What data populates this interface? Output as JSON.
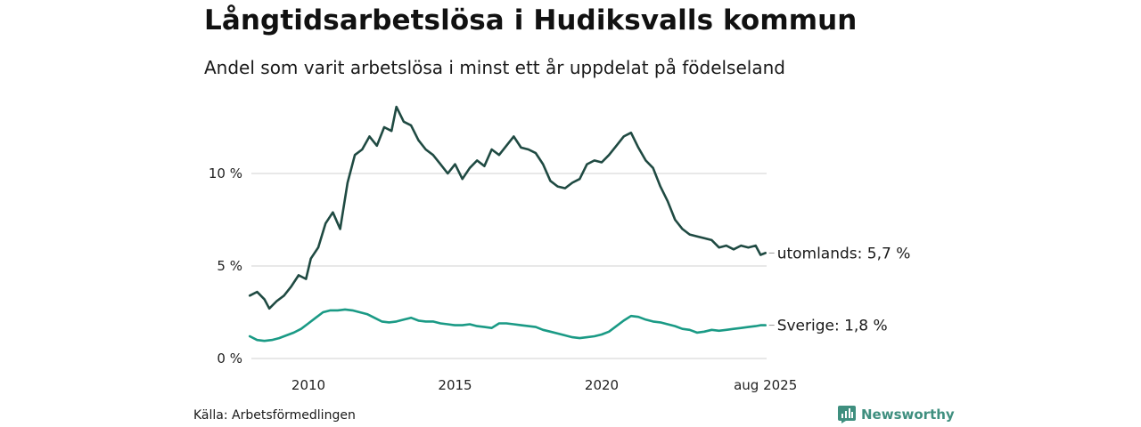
{
  "header": {
    "title": "Långtidsarbetslösa i Hudiksvalls kommun",
    "subtitle": "Andel som varit arbetslösa i minst ett år uppdelat på födelseland"
  },
  "footer": {
    "source": "Källa: Arbetsförmedlingen",
    "brand": "Newsworthy",
    "brand_icon": "newsworthy-chart-icon"
  },
  "colors": {
    "utomlands": "#1f4a42",
    "sverige": "#1a9a85",
    "grid": "#d9d9d9",
    "brand": "#3f8f7f"
  },
  "chart_data": {
    "type": "line",
    "title": "Långtidsarbetslösa i Hudiksvalls kommun",
    "subtitle": "Andel som varit arbetslösa i minst ett år uppdelat på födelseland",
    "xlabel": "",
    "ylabel": "",
    "xlim": [
      "2008-01",
      "2025-08"
    ],
    "ylim": [
      0,
      14
    ],
    "grid": true,
    "y_ticks": [
      0,
      5,
      10
    ],
    "y_tick_labels": [
      "0 %",
      "5 %",
      "10 %"
    ],
    "x_ticks": [
      "2010-01",
      "2015-01",
      "2020-01",
      "2025-08"
    ],
    "x_tick_labels": [
      "2010",
      "2015",
      "2020",
      "aug 2025"
    ],
    "series": [
      {
        "name": "utomlands",
        "end_label": "utomlands: 5,7 %",
        "points": [
          [
            "2008-01",
            3.4
          ],
          [
            "2008-04",
            3.6
          ],
          [
            "2008-07",
            3.2
          ],
          [
            "2008-09",
            2.7
          ],
          [
            "2008-12",
            3.1
          ],
          [
            "2009-03",
            3.4
          ],
          [
            "2009-06",
            3.9
          ],
          [
            "2009-09",
            4.5
          ],
          [
            "2009-12",
            4.3
          ],
          [
            "2010-02",
            5.4
          ],
          [
            "2010-05",
            6.0
          ],
          [
            "2010-08",
            7.3
          ],
          [
            "2010-11",
            7.9
          ],
          [
            "2011-02",
            7.0
          ],
          [
            "2011-05",
            9.5
          ],
          [
            "2011-08",
            11.0
          ],
          [
            "2011-11",
            11.3
          ],
          [
            "2012-02",
            12.0
          ],
          [
            "2012-05",
            11.5
          ],
          [
            "2012-08",
            12.5
          ],
          [
            "2012-11",
            12.3
          ],
          [
            "2013-01",
            13.6
          ],
          [
            "2013-04",
            12.8
          ],
          [
            "2013-07",
            12.6
          ],
          [
            "2013-10",
            11.8
          ],
          [
            "2014-01",
            11.3
          ],
          [
            "2014-04",
            11.0
          ],
          [
            "2014-07",
            10.5
          ],
          [
            "2014-10",
            10.0
          ],
          [
            "2015-01",
            10.5
          ],
          [
            "2015-04",
            9.7
          ],
          [
            "2015-07",
            10.3
          ],
          [
            "2015-10",
            10.7
          ],
          [
            "2016-01",
            10.4
          ],
          [
            "2016-04",
            11.3
          ],
          [
            "2016-07",
            11.0
          ],
          [
            "2016-10",
            11.5
          ],
          [
            "2017-01",
            12.0
          ],
          [
            "2017-04",
            11.4
          ],
          [
            "2017-07",
            11.3
          ],
          [
            "2017-10",
            11.1
          ],
          [
            "2018-01",
            10.5
          ],
          [
            "2018-04",
            9.6
          ],
          [
            "2018-07",
            9.3
          ],
          [
            "2018-10",
            9.2
          ],
          [
            "2019-01",
            9.5
          ],
          [
            "2019-04",
            9.7
          ],
          [
            "2019-07",
            10.5
          ],
          [
            "2019-10",
            10.7
          ],
          [
            "2020-01",
            10.6
          ],
          [
            "2020-04",
            11.0
          ],
          [
            "2020-07",
            11.5
          ],
          [
            "2020-10",
            12.0
          ],
          [
            "2021-01",
            12.2
          ],
          [
            "2021-04",
            11.4
          ],
          [
            "2021-07",
            10.7
          ],
          [
            "2021-10",
            10.3
          ],
          [
            "2022-01",
            9.3
          ],
          [
            "2022-04",
            8.5
          ],
          [
            "2022-07",
            7.5
          ],
          [
            "2022-10",
            7.0
          ],
          [
            "2023-01",
            6.7
          ],
          [
            "2023-04",
            6.6
          ],
          [
            "2023-07",
            6.5
          ],
          [
            "2023-10",
            6.4
          ],
          [
            "2024-01",
            6.0
          ],
          [
            "2024-04",
            6.1
          ],
          [
            "2024-07",
            5.9
          ],
          [
            "2024-10",
            6.1
          ],
          [
            "2025-01",
            6.0
          ],
          [
            "2025-04",
            6.1
          ],
          [
            "2025-06",
            5.6
          ],
          [
            "2025-08",
            5.7
          ]
        ]
      },
      {
        "name": "Sverige",
        "end_label": "Sverige: 1,8 %",
        "points": [
          [
            "2008-01",
            1.2
          ],
          [
            "2008-04",
            1.0
          ],
          [
            "2008-07",
            0.95
          ],
          [
            "2008-10",
            1.0
          ],
          [
            "2009-01",
            1.1
          ],
          [
            "2009-04",
            1.25
          ],
          [
            "2009-07",
            1.4
          ],
          [
            "2009-10",
            1.6
          ],
          [
            "2010-01",
            1.9
          ],
          [
            "2010-04",
            2.2
          ],
          [
            "2010-07",
            2.5
          ],
          [
            "2010-10",
            2.6
          ],
          [
            "2011-01",
            2.6
          ],
          [
            "2011-04",
            2.65
          ],
          [
            "2011-07",
            2.6
          ],
          [
            "2011-10",
            2.5
          ],
          [
            "2012-01",
            2.4
          ],
          [
            "2012-04",
            2.2
          ],
          [
            "2012-07",
            2.0
          ],
          [
            "2012-10",
            1.95
          ],
          [
            "2013-01",
            2.0
          ],
          [
            "2013-04",
            2.1
          ],
          [
            "2013-07",
            2.2
          ],
          [
            "2013-10",
            2.05
          ],
          [
            "2014-01",
            2.0
          ],
          [
            "2014-04",
            2.0
          ],
          [
            "2014-07",
            1.9
          ],
          [
            "2014-10",
            1.85
          ],
          [
            "2015-01",
            1.8
          ],
          [
            "2015-04",
            1.8
          ],
          [
            "2015-07",
            1.85
          ],
          [
            "2015-10",
            1.75
          ],
          [
            "2016-01",
            1.7
          ],
          [
            "2016-04",
            1.65
          ],
          [
            "2016-07",
            1.9
          ],
          [
            "2016-10",
            1.9
          ],
          [
            "2017-01",
            1.85
          ],
          [
            "2017-04",
            1.8
          ],
          [
            "2017-07",
            1.75
          ],
          [
            "2017-10",
            1.7
          ],
          [
            "2018-01",
            1.55
          ],
          [
            "2018-04",
            1.45
          ],
          [
            "2018-07",
            1.35
          ],
          [
            "2018-10",
            1.25
          ],
          [
            "2019-01",
            1.15
          ],
          [
            "2019-04",
            1.1
          ],
          [
            "2019-07",
            1.15
          ],
          [
            "2019-10",
            1.2
          ],
          [
            "2020-01",
            1.3
          ],
          [
            "2020-04",
            1.45
          ],
          [
            "2020-07",
            1.75
          ],
          [
            "2020-10",
            2.05
          ],
          [
            "2021-01",
            2.3
          ],
          [
            "2021-04",
            2.25
          ],
          [
            "2021-07",
            2.1
          ],
          [
            "2021-10",
            2.0
          ],
          [
            "2022-01",
            1.95
          ],
          [
            "2022-04",
            1.85
          ],
          [
            "2022-07",
            1.75
          ],
          [
            "2022-10",
            1.6
          ],
          [
            "2023-01",
            1.55
          ],
          [
            "2023-04",
            1.4
          ],
          [
            "2023-07",
            1.45
          ],
          [
            "2023-10",
            1.55
          ],
          [
            "2024-01",
            1.5
          ],
          [
            "2024-04",
            1.55
          ],
          [
            "2024-07",
            1.6
          ],
          [
            "2024-10",
            1.65
          ],
          [
            "2025-01",
            1.7
          ],
          [
            "2025-04",
            1.75
          ],
          [
            "2025-06",
            1.8
          ],
          [
            "2025-08",
            1.8
          ]
        ]
      }
    ]
  }
}
